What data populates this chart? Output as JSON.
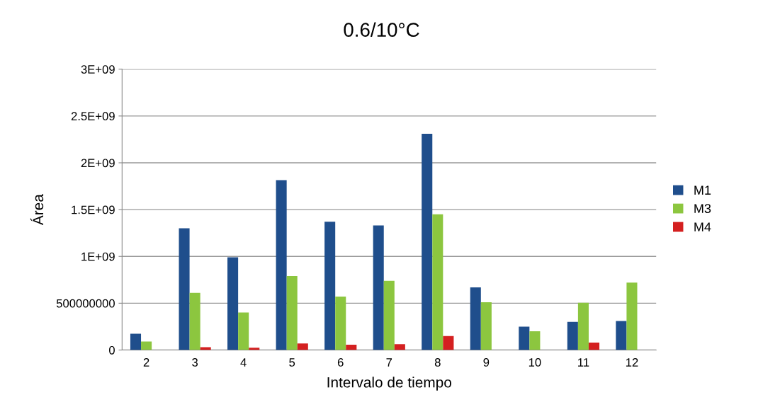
{
  "chart_data": {
    "type": "bar",
    "title": "0.6/10°C",
    "xlabel": "Intervalo de tiempo",
    "ylabel": "Área",
    "categories": [
      "2",
      "3",
      "4",
      "5",
      "6",
      "7",
      "8",
      "9",
      "10",
      "11",
      "12"
    ],
    "series": [
      {
        "name": "M1",
        "color": "#1f4e8c",
        "values": [
          174000000,
          1300000000,
          990000000,
          1815000000,
          1370000000,
          1330000000,
          2310000000,
          670000000,
          250000000,
          300000000,
          310000000
        ]
      },
      {
        "name": "M3",
        "color": "#8cc63f",
        "values": [
          90000000,
          610000000,
          400000000,
          790000000,
          570000000,
          740000000,
          1450000000,
          510000000,
          200000000,
          505000000,
          720000000
        ]
      },
      {
        "name": "M4",
        "color": "#d42020",
        "values": [
          null,
          30000000,
          25000000,
          70000000,
          57000000,
          62000000,
          150000000,
          null,
          0,
          80000000,
          0
        ]
      }
    ],
    "ylim": [
      0,
      3000000000
    ],
    "yticks": [
      0,
      {
        "value": 500000000,
        "label": "500000000"
      },
      {
        "value": 1000000000,
        "label": "1E+09"
      },
      {
        "value": 1500000000,
        "label": "1.5E+09"
      },
      {
        "value": 2000000000,
        "label": "2E+09"
      },
      {
        "value": 2500000000,
        "label": "2.5E+09"
      },
      {
        "value": 3000000000,
        "label": "3E+09"
      }
    ],
    "grid": "y",
    "legend": "right"
  }
}
